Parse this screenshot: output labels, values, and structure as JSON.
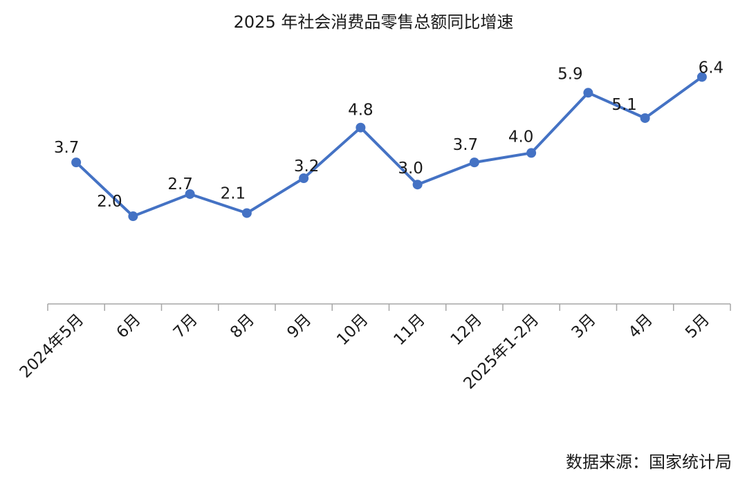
{
  "chart_data": {
    "type": "line",
    "title": "2025 年社会消费品零售总额同比增速",
    "categories": [
      "2024年5月",
      "6月",
      "7月",
      "8月",
      "9月",
      "10月",
      "11月",
      "12月",
      "2025年1-2月",
      "3月",
      "4月",
      "5月"
    ],
    "series": [
      {
        "values": [
          3.7,
          2.0,
          2.7,
          2.1,
          3.2,
          4.8,
          3.0,
          3.7,
          4.0,
          5.9,
          5.1,
          6.4
        ]
      }
    ],
    "data_labels": [
      "3.7",
      "2.0",
      "2.7",
      "2.1",
      "3.2",
      "4.8",
      "3.0",
      "3.7",
      "4.0",
      "5.9",
      "5.1",
      "6.4"
    ],
    "xlabel": "",
    "ylabel": "",
    "y_axis_visible": false,
    "grid": false,
    "legend": "none",
    "line_color": "#4472C4",
    "axis_color": "#A6A6A6"
  },
  "source_note": "数据来源：国家统计局"
}
